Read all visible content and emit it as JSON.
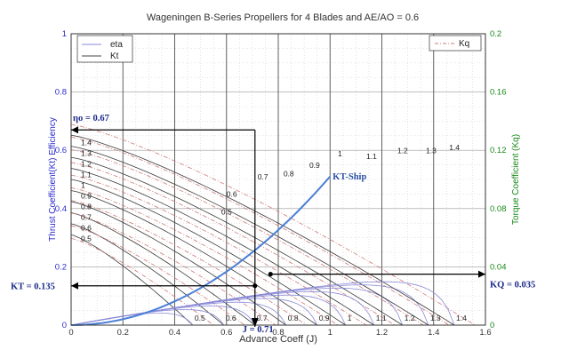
{
  "chart_data": {
    "type": "line",
    "title": "Wageningen B-Series Propellers for 4 Blades and AE/AO = 0.6",
    "xlabel": "Advance Coeff (J)",
    "ylabel_left": "Thrust Coefficient(Kt)  Efficiency",
    "ylabel_right": "Torque Coefficient (Kq)",
    "xlim": [
      0,
      1.6
    ],
    "ylim_left": [
      0,
      1
    ],
    "ylim_right": [
      0,
      0.2
    ],
    "x_ticks": [
      "0",
      "0.2",
      "0.4",
      "0.6",
      "0.8",
      "1",
      "1.2",
      "1.4",
      "1.6"
    ],
    "y_ticks_left": [
      "0",
      "0.2",
      "0.4",
      "0.6",
      "0.8",
      "1"
    ],
    "y_ticks_right": [
      "0",
      "0.04",
      "0.08",
      "0.12",
      "0.16",
      "0.2"
    ],
    "grid": true,
    "legend_left": {
      "placement": "top-left",
      "entries": [
        "eta",
        "Kt"
      ]
    },
    "legend_right": {
      "placement": "top-right",
      "entries": [
        "Kq"
      ]
    },
    "colors": {
      "eta": "#8a8ad8",
      "kt": "#444444",
      "kq": "#d07a7a",
      "kt_ship": "#4a7fd6",
      "right_axis": "#1a8a1a",
      "left_axis": "#2a2acc",
      "annotation": "#000000"
    },
    "pd_ratios": [
      0.5,
      0.6,
      0.7,
      0.8,
      0.9,
      1.0,
      1.1,
      1.2,
      1.3,
      1.4
    ],
    "pd_labels": [
      "0.5",
      "0.6",
      "0.7",
      "0.8",
      "0.9",
      "1",
      "1.1",
      "1.2",
      "1.3",
      "1.4"
    ],
    "kt_zero_j": [
      0.47,
      0.59,
      0.71,
      0.83,
      0.95,
      1.06,
      1.17,
      1.28,
      1.38,
      1.48
    ],
    "kt_left_labels": [
      "1.4",
      "1.3",
      "1.2",
      "1.1",
      "1",
      "0.9",
      "0.8",
      "0.7",
      "0.6",
      "0.5"
    ],
    "eta_peak_labels": [
      "0.5",
      "0.6",
      "0.7",
      "0.8",
      "0.9",
      "1",
      "1.1",
      "1.2",
      "1.3",
      "1.4"
    ],
    "kt_bottom_labels": [
      "0.5",
      "0.6",
      "0.7",
      "0.8",
      "0.9",
      "1",
      "1.1",
      "1.2",
      "1.3",
      "1.4"
    ],
    "kt_ship_curve": {
      "label": "KT-Ship",
      "x": [
        0,
        0.2,
        0.4,
        0.5,
        0.6,
        0.7,
        0.71,
        0.8,
        0.9,
        1.0
      ],
      "y": [
        0,
        0.003,
        0.04,
        0.075,
        0.14,
        0.22,
        0.26,
        0.32,
        0.41,
        0.51
      ]
    },
    "annotations": {
      "eta0": "ηo = 0.67",
      "kt": "KT = 0.135",
      "kq": "KQ = 0.035",
      "j": "J = 0.71"
    },
    "operating_point": {
      "j": 0.71,
      "eta": 0.67,
      "kt_left_axis": 0.135,
      "kq": 0.035
    }
  }
}
